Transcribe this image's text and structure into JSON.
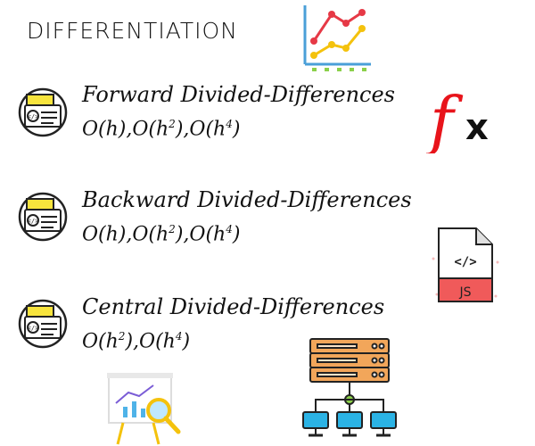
{
  "title": "DIFFERENTIATION",
  "topics": [
    {
      "name": "Forward Divided-Differences",
      "orders": [
        {
          "base": "O(h)",
          "sup": ""
        },
        {
          "base": "O(h",
          "sup": "2",
          "close": ")"
        },
        {
          "base": "O(h",
          "sup": "4",
          "close": ")"
        }
      ]
    },
    {
      "name": "Backward Divided-Differences",
      "orders": [
        {
          "base": "O(h)",
          "sup": ""
        },
        {
          "base": "O(h",
          "sup": "2",
          "close": ")"
        },
        {
          "base": "O(h",
          "sup": "4",
          "close": ")"
        }
      ]
    },
    {
      "name": "Central Divided-Differences",
      "orders": [
        {
          "base": "O(h",
          "sup": "2",
          "close": ")"
        },
        {
          "base": "O(h",
          "sup": "4",
          "close": ")"
        }
      ]
    }
  ],
  "icons": {
    "chart": "line-chart-icon",
    "fx": "function-fx-icon",
    "js": "js-file-icon",
    "code": "code-window-icon",
    "presentation": "presentation-analytics-icon",
    "server": "server-network-icon"
  },
  "fx_letter_f": "f",
  "fx_letter_x": "x",
  "js_label": "JS",
  "js_code_glyph": "</>",
  "colors": {
    "fx_red": "#e8141b",
    "js_red": "#f05a5a",
    "chart_red": "#e63946",
    "chart_yellow": "#f4c20d",
    "code_yellow": "#f7e43d",
    "server_orange": "#f2a65a",
    "network_blue": "#2bb3e5"
  }
}
